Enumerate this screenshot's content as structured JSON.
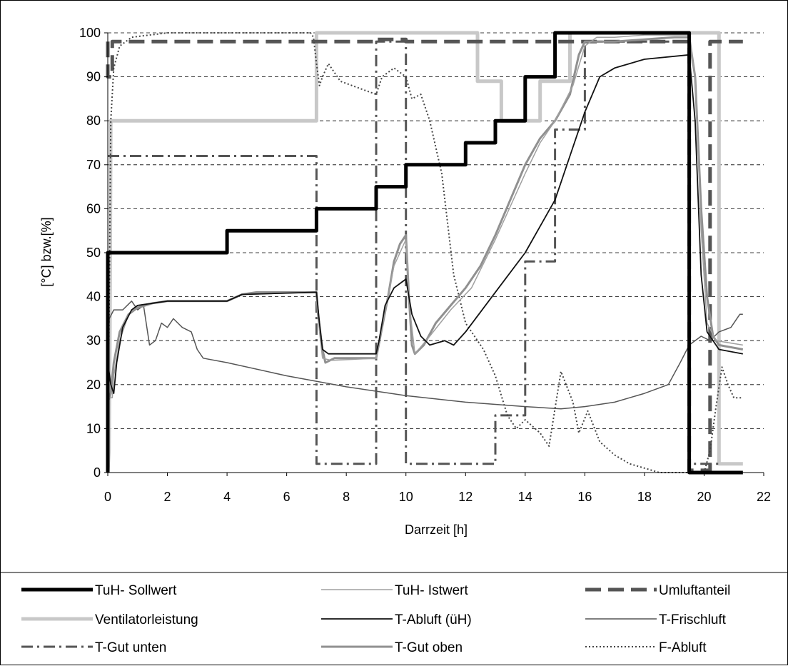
{
  "chart_data": {
    "type": "line",
    "title": "",
    "xlabel": "Darrzeit [h]",
    "ylabel": "[°C] bzw.[%]",
    "xlim": [
      0,
      22
    ],
    "ylim": [
      0,
      100
    ],
    "x_ticks": [
      "0",
      "2",
      "4",
      "6",
      "8",
      "10",
      "12",
      "14",
      "16",
      "18",
      "20",
      "22"
    ],
    "y_ticks": [
      "0",
      "10",
      "20",
      "30",
      "40",
      "50",
      "60",
      "70",
      "80",
      "90",
      "100"
    ],
    "grid": "horizontal dashed",
    "legend_position": "bottom",
    "series": [
      {
        "name": "Ventilatorleistung",
        "color": "#c8c8c8",
        "style": "thick-light",
        "points": [
          [
            0,
            0
          ],
          [
            0.04,
            5
          ],
          [
            0.07,
            30
          ],
          [
            0.1,
            80
          ],
          [
            7,
            80
          ],
          [
            7,
            100
          ],
          [
            12.4,
            100
          ],
          [
            12.4,
            89
          ],
          [
            13.2,
            89
          ],
          [
            13.2,
            80
          ],
          [
            14.5,
            80
          ],
          [
            14.5,
            89
          ],
          [
            15.5,
            89
          ],
          [
            15.5,
            100
          ],
          [
            20.5,
            100
          ],
          [
            20.5,
            2
          ],
          [
            21.3,
            2
          ]
        ]
      },
      {
        "name": "Umluftanteil",
        "color": "#555555",
        "style": "long-dash",
        "points": [
          [
            0,
            98
          ],
          [
            0,
            90
          ],
          [
            0.15,
            90
          ],
          [
            0.15,
            98
          ],
          [
            9,
            98
          ],
          [
            9,
            98.5
          ],
          [
            10,
            98.5
          ],
          [
            10,
            98
          ],
          [
            19.5,
            98
          ],
          [
            19.5,
            0.5
          ],
          [
            20.2,
            0.5
          ],
          [
            20.2,
            98
          ],
          [
            21.3,
            98
          ]
        ]
      },
      {
        "name": "T-Gut unten",
        "color": "#555555",
        "style": "dash-dot",
        "points": [
          [
            0,
            72
          ],
          [
            7,
            72
          ],
          [
            7,
            2
          ],
          [
            9,
            2
          ],
          [
            9,
            98
          ],
          [
            10,
            98
          ],
          [
            10,
            2
          ],
          [
            13,
            2
          ],
          [
            13,
            13
          ],
          [
            14,
            13
          ],
          [
            14,
            48
          ],
          [
            15,
            48
          ],
          [
            15,
            78
          ],
          [
            16,
            78
          ],
          [
            16,
            98
          ],
          [
            19.5,
            98
          ],
          [
            19.5,
            2
          ],
          [
            20.5,
            2
          ]
        ]
      },
      {
        "name": "F-Abluft",
        "color": "#444444",
        "style": "dotted",
        "points": [
          [
            0,
            0
          ],
          [
            0.05,
            40
          ],
          [
            0.1,
            80
          ],
          [
            0.2,
            92
          ],
          [
            0.4,
            97
          ],
          [
            0.8,
            99
          ],
          [
            2,
            100
          ],
          [
            6.8,
            100
          ],
          [
            6.9,
            99
          ],
          [
            7,
            93
          ],
          [
            7.1,
            88
          ],
          [
            7.2,
            90
          ],
          [
            7.4,
            93
          ],
          [
            7.8,
            89
          ],
          [
            8.6,
            87
          ],
          [
            9,
            86
          ],
          [
            9.2,
            90
          ],
          [
            9.6,
            92
          ],
          [
            10,
            90
          ],
          [
            10.2,
            85
          ],
          [
            10.5,
            86
          ],
          [
            10.8,
            80
          ],
          [
            11.2,
            68
          ],
          [
            11.6,
            45
          ],
          [
            12,
            34
          ],
          [
            12.6,
            28
          ],
          [
            13,
            22
          ],
          [
            13.4,
            13
          ],
          [
            13.7,
            10
          ],
          [
            14,
            12
          ],
          [
            14.5,
            9
          ],
          [
            14.8,
            6
          ],
          [
            15.2,
            23
          ],
          [
            15.6,
            16
          ],
          [
            15.8,
            9
          ],
          [
            16.1,
            14
          ],
          [
            16.5,
            7
          ],
          [
            17,
            4
          ],
          [
            17.5,
            2
          ],
          [
            18,
            1
          ],
          [
            18.5,
            0
          ],
          [
            19.5,
            0
          ],
          [
            20,
            0
          ],
          [
            20.2,
            5
          ],
          [
            20.4,
            15
          ],
          [
            20.6,
            24
          ],
          [
            20.8,
            20
          ],
          [
            21,
            17
          ],
          [
            21.3,
            17
          ]
        ]
      },
      {
        "name": "T-Frischluft",
        "color": "#555555",
        "style": "thin",
        "points": [
          [
            0,
            27
          ],
          [
            0.05,
            35
          ],
          [
            0.2,
            37
          ],
          [
            0.5,
            37
          ],
          [
            0.8,
            39
          ],
          [
            1,
            37
          ],
          [
            1.2,
            38
          ],
          [
            1.4,
            29
          ],
          [
            1.6,
            30
          ],
          [
            1.8,
            34
          ],
          [
            2,
            33
          ],
          [
            2.2,
            35
          ],
          [
            2.5,
            33
          ],
          [
            2.8,
            32
          ],
          [
            3,
            28
          ],
          [
            3.2,
            26
          ],
          [
            4,
            25
          ],
          [
            6,
            22
          ],
          [
            8,
            19.5
          ],
          [
            10,
            17.5
          ],
          [
            12,
            16
          ],
          [
            14,
            15
          ],
          [
            15.2,
            14.5
          ],
          [
            16,
            15
          ],
          [
            17,
            16
          ],
          [
            18,
            18
          ],
          [
            18.8,
            20
          ],
          [
            19.2,
            25
          ],
          [
            19.5,
            29
          ],
          [
            19.9,
            31
          ],
          [
            20.2,
            30
          ],
          [
            20.5,
            32
          ],
          [
            20.9,
            33
          ],
          [
            21.2,
            36
          ],
          [
            21.3,
            36
          ]
        ]
      },
      {
        "name": "T-Gut oben",
        "color": "#909090",
        "style": "medium-gray",
        "points": [
          [
            0,
            16
          ],
          [
            0.1,
            18
          ],
          [
            0.2,
            25
          ],
          [
            0.4,
            32
          ],
          [
            0.7,
            36
          ],
          [
            1,
            37.5
          ],
          [
            1.5,
            38.5
          ],
          [
            2,
            39
          ],
          [
            4,
            39
          ],
          [
            4.5,
            40.5
          ],
          [
            5,
            41
          ],
          [
            7,
            41
          ],
          [
            7.05,
            36
          ],
          [
            7.2,
            28
          ],
          [
            7.3,
            25
          ],
          [
            7.6,
            26
          ],
          [
            8.6,
            26
          ],
          [
            9,
            26
          ],
          [
            9.2,
            33
          ],
          [
            9.4,
            40
          ],
          [
            9.6,
            48
          ],
          [
            9.8,
            52
          ],
          [
            10,
            54
          ],
          [
            10.1,
            40
          ],
          [
            10.2,
            29
          ],
          [
            10.3,
            27
          ],
          [
            10.6,
            29
          ],
          [
            11,
            34
          ],
          [
            11.5,
            38
          ],
          [
            12,
            42
          ],
          [
            12.5,
            47
          ],
          [
            13,
            54
          ],
          [
            13.5,
            62
          ],
          [
            14,
            70
          ],
          [
            14.5,
            76
          ],
          [
            15,
            80
          ],
          [
            15.5,
            86
          ],
          [
            15.8,
            95
          ],
          [
            16,
            98
          ],
          [
            17,
            98
          ],
          [
            18,
            98.5
          ],
          [
            19,
            99
          ],
          [
            19.5,
            99
          ],
          [
            19.7,
            90
          ],
          [
            19.9,
            60
          ],
          [
            20.1,
            40
          ],
          [
            20.3,
            31
          ],
          [
            20.5,
            29
          ],
          [
            21.3,
            28
          ]
        ]
      },
      {
        "name": "TuH- Istwert",
        "color": "#a0a0a0",
        "style": "thin-gray",
        "points": [
          [
            0,
            17
          ],
          [
            0.15,
            17
          ],
          [
            0.2,
            22
          ],
          [
            0.4,
            30
          ],
          [
            0.7,
            36
          ],
          [
            1,
            38
          ],
          [
            2,
            39
          ],
          [
            4,
            39
          ],
          [
            4.5,
            40.5
          ],
          [
            7,
            41
          ],
          [
            7.1,
            32
          ],
          [
            7.2,
            26
          ],
          [
            7.5,
            25.5
          ],
          [
            9,
            26
          ],
          [
            9.2,
            33
          ],
          [
            9.6,
            47
          ],
          [
            10,
            53
          ],
          [
            10.15,
            36
          ],
          [
            10.3,
            27
          ],
          [
            10.8,
            31
          ],
          [
            11.5,
            37
          ],
          [
            12.2,
            42
          ],
          [
            13,
            53
          ],
          [
            14,
            68
          ],
          [
            14.5,
            75
          ],
          [
            15,
            80
          ],
          [
            15.6,
            88
          ],
          [
            16,
            97
          ],
          [
            16.4,
            99
          ],
          [
            17,
            99
          ],
          [
            18,
            99.5
          ],
          [
            19.5,
            99.5
          ],
          [
            19.7,
            90
          ],
          [
            19.9,
            55
          ],
          [
            20.1,
            34
          ],
          [
            20.4,
            30
          ],
          [
            21.3,
            29
          ]
        ]
      },
      {
        "name": "T-Abluft (üH)",
        "color": "#111111",
        "style": "thin-black",
        "points": [
          [
            0,
            25
          ],
          [
            0.1,
            20
          ],
          [
            0.2,
            18
          ],
          [
            0.3,
            25
          ],
          [
            0.5,
            33
          ],
          [
            0.8,
            37
          ],
          [
            1,
            38
          ],
          [
            1.5,
            38.5
          ],
          [
            2,
            39
          ],
          [
            4,
            39
          ],
          [
            4.5,
            40.5
          ],
          [
            7,
            41
          ],
          [
            7.1,
            34
          ],
          [
            7.2,
            28
          ],
          [
            7.4,
            27
          ],
          [
            9,
            27
          ],
          [
            9.1,
            30
          ],
          [
            9.3,
            38
          ],
          [
            9.6,
            42
          ],
          [
            10,
            44
          ],
          [
            10.2,
            36
          ],
          [
            10.5,
            31
          ],
          [
            10.8,
            29
          ],
          [
            11.3,
            30
          ],
          [
            11.6,
            29
          ],
          [
            12,
            32
          ],
          [
            13,
            41
          ],
          [
            14,
            50
          ],
          [
            15,
            62
          ],
          [
            15.5,
            72
          ],
          [
            16,
            82
          ],
          [
            16.5,
            90
          ],
          [
            17,
            92
          ],
          [
            18,
            94
          ],
          [
            19.5,
            95
          ],
          [
            19.7,
            80
          ],
          [
            19.9,
            45
          ],
          [
            20.1,
            32
          ],
          [
            20.5,
            28
          ],
          [
            21.3,
            27
          ]
        ]
      },
      {
        "name": "TuH- Sollwert",
        "color": "#000000",
        "style": "thick-black",
        "points": [
          [
            0,
            0
          ],
          [
            0,
            50
          ],
          [
            4,
            50
          ],
          [
            4,
            55
          ],
          [
            7,
            55
          ],
          [
            7,
            60
          ],
          [
            9,
            60
          ],
          [
            9,
            65
          ],
          [
            10,
            65
          ],
          [
            10,
            70
          ],
          [
            12,
            70
          ],
          [
            12,
            75
          ],
          [
            13,
            75
          ],
          [
            13,
            80
          ],
          [
            14,
            80
          ],
          [
            14,
            90
          ],
          [
            15,
            90
          ],
          [
            15,
            100
          ],
          [
            19.5,
            100
          ],
          [
            19.5,
            0
          ],
          [
            21.3,
            0
          ]
        ]
      }
    ]
  },
  "legend_rows": [
    [
      "TuH- Sollwert",
      "TuH- Istwert",
      "Umluftanteil"
    ],
    [
      "Ventilatorleistung",
      "T-Abluft (üH)",
      "T-Frischluft"
    ],
    [
      "T-Gut unten",
      "T-Gut oben",
      "F-Abluft"
    ]
  ]
}
